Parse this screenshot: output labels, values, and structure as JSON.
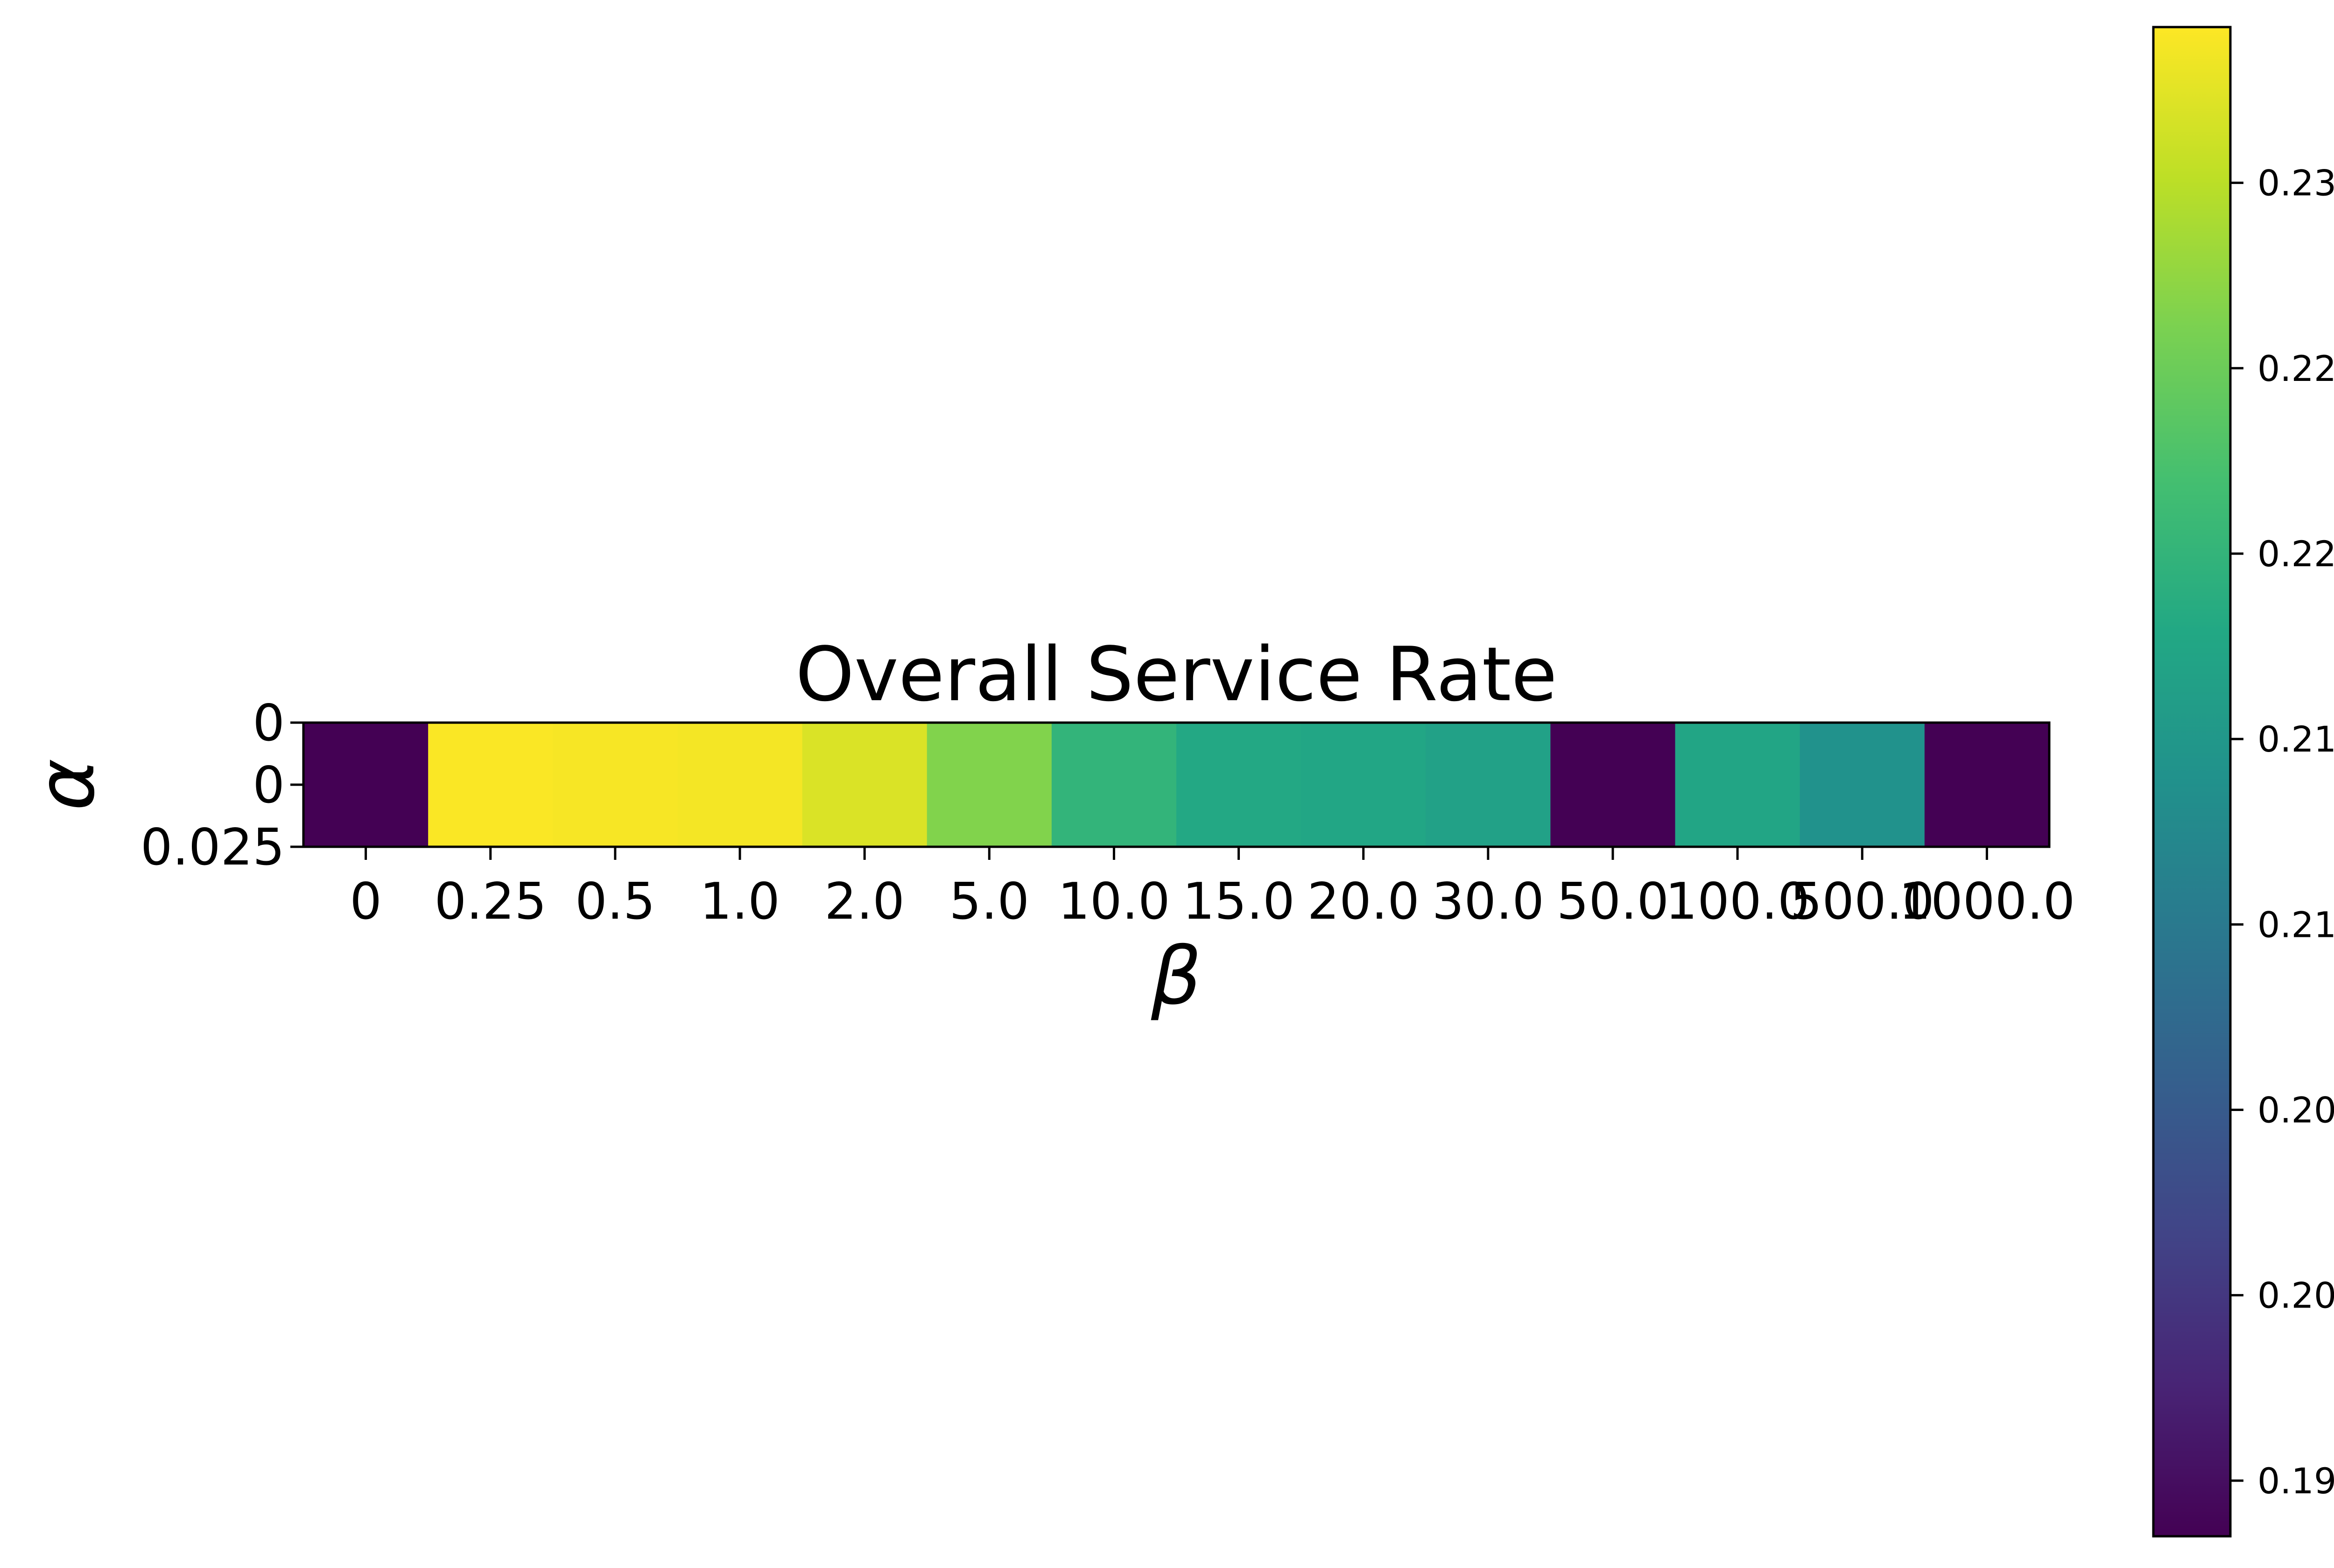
{
  "chart_data": {
    "type": "heatmap",
    "title": "Overall Service Rate",
    "xlabel": "β",
    "ylabel": "α",
    "x_categories": [
      "0",
      "0.25",
      "0.5",
      "1.0",
      "2.0",
      "5.0",
      "10.0",
      "15.0",
      "20.0",
      "30.0",
      "50.0",
      "100.0",
      "500.0",
      "1000.0"
    ],
    "y_tick_labels": [
      "0",
      "0",
      "0.025"
    ],
    "values": [
      [
        0.1935,
        0.234,
        0.2338,
        0.2336,
        0.232,
        0.2265,
        0.22,
        0.218,
        0.2176,
        0.2166,
        0.1935,
        0.2174,
        0.214,
        0.1935
      ]
    ],
    "colormap": "viridis",
    "color_range": [
      0.1935,
      0.2342
    ],
    "colorbar_ticks": [
      "0.195",
      "0.200",
      "0.205",
      "0.210",
      "0.215",
      "0.220",
      "0.225",
      "0.230"
    ],
    "grid": false,
    "colorbar_position": "right"
  }
}
